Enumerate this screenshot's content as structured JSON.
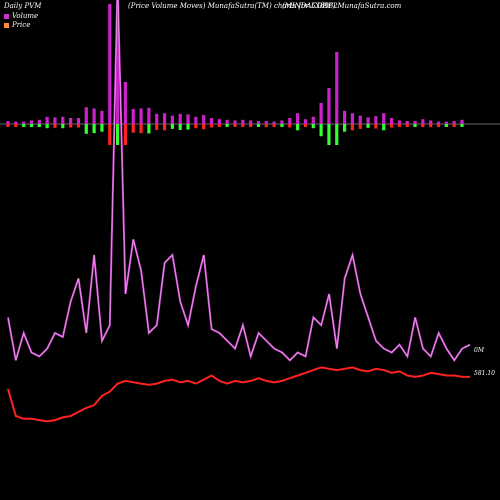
{
  "header": {
    "left": "Daily PVM",
    "middle": "(Price Volume Moves)  MunafaSutra(TM) charts for 538962",
    "right": "(MINDACORP) MunafaSutra.com"
  },
  "legend": [
    {
      "label": "Volume",
      "color": "#cc33cc"
    },
    {
      "label": "Price",
      "color": "#ff6633"
    }
  ],
  "right_labels": {
    "volume": "0M",
    "price": "581.10"
  },
  "colors": {
    "volume_bar": "#cc22cc",
    "up": "#33ff33",
    "down": "#ff2222",
    "volume_line": "#cc44cc",
    "price_line": "#ff2222"
  },
  "chart_data": {
    "type": "line",
    "bars": [
      {
        "v": 5,
        "c": "d"
      },
      {
        "v": 4,
        "c": "d"
      },
      {
        "v": 4,
        "c": "u"
      },
      {
        "v": 6,
        "c": "u"
      },
      {
        "v": 7,
        "c": "u"
      },
      {
        "v": 12,
        "c": "u"
      },
      {
        "v": 11,
        "c": "d"
      },
      {
        "v": 12,
        "c": "u"
      },
      {
        "v": 10,
        "c": "d"
      },
      {
        "v": 10,
        "c": "d"
      },
      {
        "v": 28,
        "c": "u"
      },
      {
        "v": 26,
        "c": "u"
      },
      {
        "v": 22,
        "c": "u"
      },
      {
        "v": 200,
        "c": "d"
      },
      {
        "v": 200,
        "c": "u"
      },
      {
        "v": 70,
        "c": "d"
      },
      {
        "v": 25,
        "c": "d"
      },
      {
        "v": 26,
        "c": "d"
      },
      {
        "v": 27,
        "c": "u"
      },
      {
        "v": 17,
        "c": "d"
      },
      {
        "v": 18,
        "c": "d"
      },
      {
        "v": 14,
        "c": "u"
      },
      {
        "v": 17,
        "c": "u"
      },
      {
        "v": 16,
        "c": "u"
      },
      {
        "v": 12,
        "c": "d"
      },
      {
        "v": 15,
        "c": "d"
      },
      {
        "v": 10,
        "c": "d"
      },
      {
        "v": 8,
        "c": "d"
      },
      {
        "v": 7,
        "c": "u"
      },
      {
        "v": 6,
        "c": "d"
      },
      {
        "v": 7,
        "c": "d"
      },
      {
        "v": 6,
        "c": "d"
      },
      {
        "v": 5,
        "c": "u"
      },
      {
        "v": 5,
        "c": "d"
      },
      {
        "v": 4,
        "c": "d"
      },
      {
        "v": 6,
        "c": "u"
      },
      {
        "v": 10,
        "c": "d"
      },
      {
        "v": 18,
        "c": "u"
      },
      {
        "v": 8,
        "c": "d"
      },
      {
        "v": 12,
        "c": "u"
      },
      {
        "v": 35,
        "c": "u"
      },
      {
        "v": 60,
        "c": "u"
      },
      {
        "v": 120,
        "c": "u"
      },
      {
        "v": 22,
        "c": "u"
      },
      {
        "v": 18,
        "c": "d"
      },
      {
        "v": 14,
        "c": "d"
      },
      {
        "v": 11,
        "c": "u"
      },
      {
        "v": 13,
        "c": "d"
      },
      {
        "v": 18,
        "c": "u"
      },
      {
        "v": 10,
        "c": "d"
      },
      {
        "v": 6,
        "c": "d"
      },
      {
        "v": 5,
        "c": "d"
      },
      {
        "v": 5,
        "c": "u"
      },
      {
        "v": 8,
        "c": "d"
      },
      {
        "v": 6,
        "c": "d"
      },
      {
        "v": 4,
        "c": "d"
      },
      {
        "v": 4,
        "c": "u"
      },
      {
        "v": 5,
        "c": "d"
      },
      {
        "v": 7,
        "c": "u"
      }
    ],
    "volume_series": [
      14,
      3,
      10,
      5,
      4,
      6,
      10,
      9,
      18,
      24,
      10,
      30,
      8,
      12,
      100,
      20,
      34,
      26,
      10,
      12,
      28,
      30,
      18,
      12,
      22,
      30,
      11,
      10,
      8,
      6,
      12,
      4,
      10,
      8,
      6,
      5,
      3,
      5,
      4,
      14,
      12,
      20,
      6,
      24,
      30,
      20,
      14,
      8,
      6,
      5,
      7,
      4,
      14,
      6,
      4,
      10,
      6,
      3,
      6,
      7
    ],
    "price_series": [
      60,
      40,
      38,
      38,
      37,
      36,
      37,
      39,
      40,
      43,
      46,
      48,
      55,
      58,
      64,
      66,
      65,
      64,
      63,
      64,
      66,
      67,
      65,
      66,
      64,
      67,
      70,
      66,
      64,
      66,
      65,
      66,
      68,
      66,
      65,
      66,
      68,
      70,
      72,
      74,
      76,
      75,
      74,
      75,
      76,
      74,
      73,
      75,
      74,
      72,
      73,
      70,
      69,
      70,
      72,
      71,
      70,
      70,
      69,
      69
    ]
  }
}
